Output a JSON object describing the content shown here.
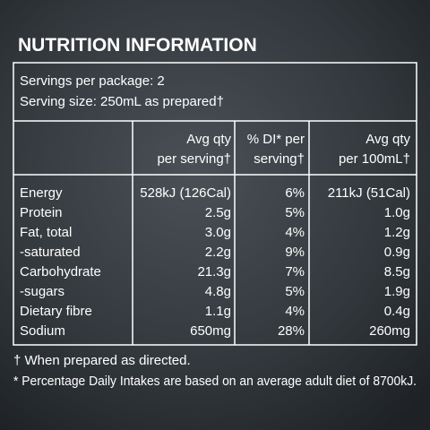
{
  "title": "NUTRITION INFORMATION",
  "servings": [
    "Servings per package: 2",
    "Serving size: 250mL as prepared†"
  ],
  "table": {
    "header": [
      [
        "Avg qty",
        "per serving†"
      ],
      [
        "% DI* per",
        "serving†"
      ],
      [
        "Avg qty",
        "per 100mL†"
      ]
    ],
    "rows": [
      [
        "Energy",
        "528kJ (126Cal)",
        "6%",
        "211kJ (51Cal)"
      ],
      [
        "Protein",
        "2.5g",
        "5%",
        "1.0g"
      ],
      [
        "Fat, total",
        "3.0g",
        "4%",
        "1.2g"
      ],
      [
        "-saturated",
        "2.2g",
        "9%",
        "0.9g"
      ],
      [
        "Carbohydrate",
        "21.3g",
        "7%",
        "8.5g"
      ],
      [
        "-sugars",
        "4.8g",
        "5%",
        "1.9g"
      ],
      [
        "Dietary fibre",
        "1.1g",
        "4%",
        "0.4g"
      ],
      [
        "Sodium",
        "650mg",
        "28%",
        "260mg"
      ]
    ]
  },
  "footnotes": [
    "† When prepared as directed.",
    "* Percentage Daily Intakes are based on an average adult diet of 8700kJ."
  ]
}
